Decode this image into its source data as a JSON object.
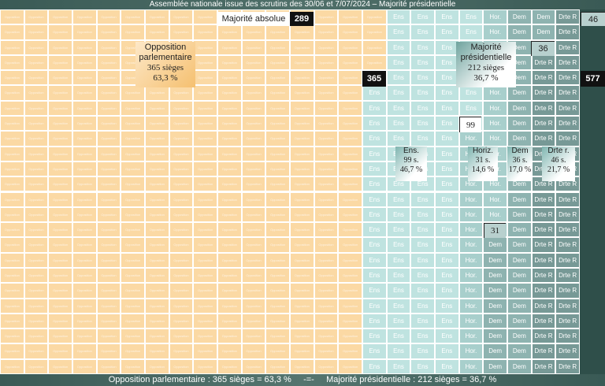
{
  "title": "Assemblée nationale issue des scrutins des 30/06 et 7/07/2024 – Majorité présidentielle",
  "footer": {
    "left": "Opposition parlementaire : 365 sièges = 63,3 %",
    "sep": "-=-",
    "right": "Majorité présidentielle : 212 sièges = 36,7 %"
  },
  "majority_label": "Majorité absolue",
  "majority_value": "289",
  "total_value": "577",
  "opposition": {
    "line1": "Opposition",
    "line2": "parlementaire",
    "line3": "365 sièges",
    "line4": "63,3 %",
    "count_label": "365"
  },
  "presidential": {
    "line1": "Majorité",
    "line2": "présidentielle",
    "line3": "212 sièges",
    "line4": "36,7 %"
  },
  "cell_labels": {
    "opp": "Opposition",
    "ens": "Ens",
    "hor": "Hor.",
    "dem": "Dem",
    "drte": "Drte R"
  },
  "group_info": {
    "ens": {
      "name": "Ens.",
      "seats": "99 s.",
      "pct": "46,7 %"
    },
    "hor": {
      "name": "Horiz.",
      "seats": "31 s.",
      "pct": "14,6 %"
    },
    "dem": {
      "name": "Dem",
      "seats": "36 s.",
      "pct": "17,0 %"
    },
    "drte": {
      "name": "Drte r.",
      "seats": "46 s.",
      "pct": "21,7 %"
    }
  },
  "markers": {
    "m99": "99",
    "m36": "36",
    "m31": "31",
    "m46": "46"
  },
  "colors": {
    "opposition": "#fbd9a4",
    "ens": "#bfe3e0",
    "hor": "#a8cfcc",
    "dem": "#8eb3b0",
    "drte": "#779996"
  },
  "chart_data": {
    "type": "waffle",
    "total_seats": 577,
    "majority_threshold": 289,
    "series": [
      {
        "name": "Opposition parlementaire",
        "value": 365,
        "percent": 63.3
      },
      {
        "name": "Ens.",
        "value": 99,
        "percent": 46.7
      },
      {
        "name": "Horiz.",
        "value": 31,
        "percent": 14.6
      },
      {
        "name": "Dem",
        "value": 36,
        "percent": 17.0
      },
      {
        "name": "Drte r.",
        "value": 46,
        "percent": 21.7
      }
    ]
  }
}
